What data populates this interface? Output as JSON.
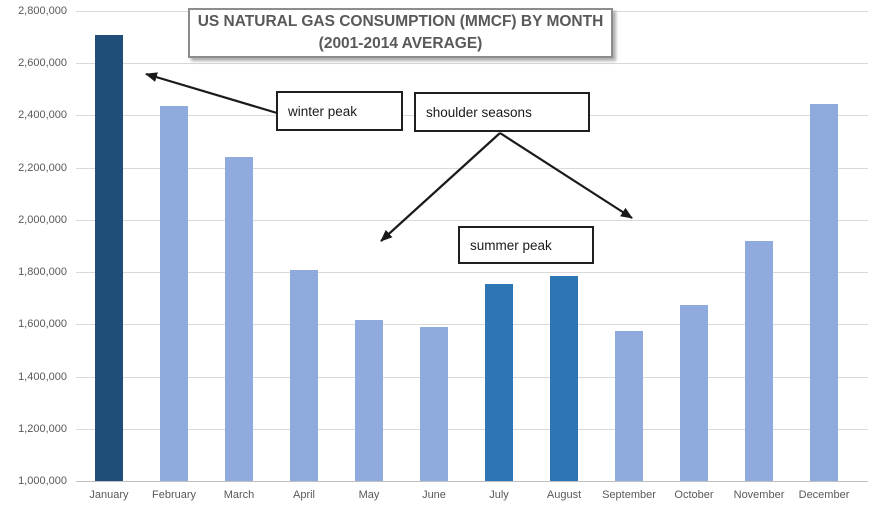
{
  "chart_data": {
    "type": "bar",
    "title": "US NATURAL GAS CONSUMPTION (MMCF) BY MONTH (2001-2014 AVERAGE)",
    "title_lines": [
      "US NATURAL GAS CONSUMPTION (MMCF) BY MONTH",
      "(2001-2014 AVERAGE)"
    ],
    "categories": [
      "January",
      "February",
      "March",
      "April",
      "May",
      "June",
      "July",
      "August",
      "September",
      "October",
      "November",
      "December"
    ],
    "values": [
      2710000,
      2435000,
      2240000,
      1810000,
      1615000,
      1590000,
      1755000,
      1785000,
      1575000,
      1675000,
      1920000,
      2445000
    ],
    "xlabel": "",
    "ylabel": "",
    "ylim": [
      1000000,
      2800000
    ],
    "ytick_step": 200000,
    "grid": true,
    "legend": false,
    "bar_colors": [
      "#1F4E79",
      "#8FAADC",
      "#8FAADC",
      "#8FAADC",
      "#8FAADC",
      "#8FAADC",
      "#2E75B6",
      "#2E75B6",
      "#8FAADC",
      "#8FAADC",
      "#8FAADC",
      "#8FAADC"
    ],
    "annotations": [
      {
        "label": "winter peak",
        "points_to": "January"
      },
      {
        "label": "shoulder seasons",
        "points_to": "May and September-October"
      },
      {
        "label": "summer peak",
        "points_to": "July-August"
      }
    ]
  },
  "colors": {
    "bar_light": "#8FAADC",
    "bar_dark_winter": "#1F4E79",
    "bar_medium_summer": "#2E75B6",
    "gridline": "#D9D9D9",
    "axis_text": "#595959",
    "title_text": "#595959",
    "title_border": "#8C8C8C",
    "annotation_border": "#1F1F1F",
    "arrow": "#1A1A1A"
  }
}
